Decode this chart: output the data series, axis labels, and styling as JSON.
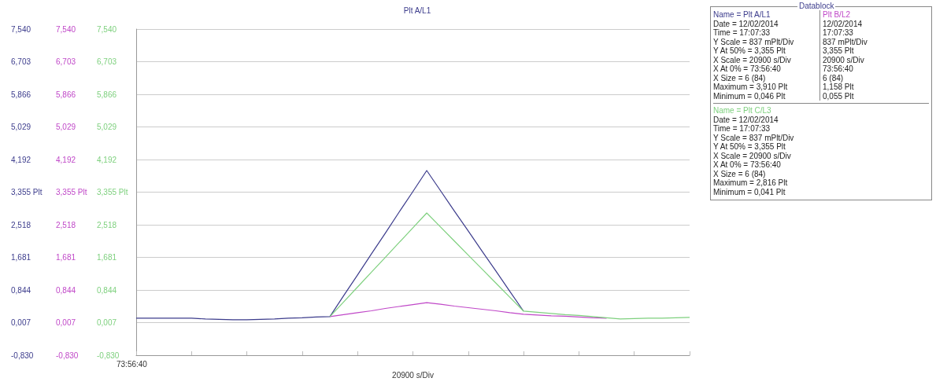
{
  "chart_data": [
    {
      "type": "line",
      "title": "Plt A/L1",
      "xlabel": "20900 s/Div",
      "annotations": [
        "73:56:40"
      ],
      "categories": [
        null,
        null,
        null,
        null,
        null,
        null,
        null,
        null,
        null,
        null,
        null,
        null,
        null,
        null,
        null,
        null,
        null,
        null,
        null,
        null,
        null,
        null,
        null,
        null,
        null,
        null,
        null,
        null,
        null,
        null,
        null,
        null,
        null,
        null,
        null,
        null,
        null,
        null,
        null,
        null,
        null
      ],
      "series": [
        {
          "color": "#3c3c8c",
          "values": [
            0.12,
            0.12,
            0.12,
            0.12,
            0.12,
            0.1,
            0.09,
            0.08,
            0.08,
            0.09,
            0.1,
            0.12,
            0.13,
            0.15,
            0.16,
            0.7,
            1.23,
            1.77,
            2.3,
            2.84,
            3.37,
            3.91,
            3.39,
            2.87,
            2.36,
            1.84,
            1.33,
            0.81,
            0.3,
            null,
            null,
            null,
            null,
            null,
            null,
            null,
            null,
            null,
            null,
            null,
            null
          ]
        },
        {
          "color": "#c048c8",
          "axis": "y2",
          "values": [
            null,
            null,
            null,
            null,
            null,
            null,
            null,
            null,
            null,
            null,
            null,
            null,
            null,
            null,
            0.16,
            0.21,
            0.26,
            0.31,
            0.37,
            0.42,
            0.47,
            0.52,
            0.48,
            0.43,
            0.39,
            0.35,
            0.31,
            0.26,
            0.22,
            0.2,
            0.18,
            0.17,
            0.15,
            0.13,
            0.12,
            null,
            null,
            null,
            null,
            null,
            null
          ]
        },
        {
          "color": "#7ed07e",
          "axis": "y3",
          "values": [
            null,
            null,
            null,
            null,
            null,
            null,
            null,
            null,
            null,
            null,
            null,
            null,
            null,
            null,
            0.16,
            0.54,
            0.92,
            1.3,
            1.68,
            2.06,
            2.44,
            2.82,
            2.46,
            2.1,
            1.74,
            1.38,
            1.02,
            0.66,
            0.3,
            0.27,
            0.24,
            0.21,
            0.19,
            0.16,
            0.13,
            0.1,
            0.11,
            0.12,
            0.12,
            0.13,
            0.14
          ]
        }
      ],
      "ylim": [
        -0.83,
        7.54
      ],
      "yticks": [
        {
          "value": -0.83,
          "label": "-0,830"
        },
        {
          "value": 0.007,
          "label": "0,007"
        },
        {
          "value": 0.844,
          "label": "0,844"
        },
        {
          "value": 1.681,
          "label": "1,681"
        },
        {
          "value": 2.518,
          "label": "2,518"
        },
        {
          "value": 3.355,
          "label": "3,355 Plt"
        },
        {
          "value": 4.192,
          "label": "4,192"
        },
        {
          "value": 5.029,
          "label": "5,029"
        },
        {
          "value": 5.866,
          "label": "5,866"
        },
        {
          "value": 6.703,
          "label": "6,703"
        },
        {
          "value": 7.54,
          "label": "7,540"
        }
      ],
      "y2lim": [
        -0.83,
        7.54
      ],
      "y2ticks": [
        {
          "value": -0.83,
          "label": "-0,830"
        },
        {
          "value": 0.007,
          "label": "0,007"
        },
        {
          "value": 0.844,
          "label": "0,844"
        },
        {
          "value": 1.681,
          "label": "1,681"
        },
        {
          "value": 2.518,
          "label": "2,518"
        },
        {
          "value": 3.355,
          "label": "3,355 Plt"
        },
        {
          "value": 4.192,
          "label": "4,192"
        },
        {
          "value": 5.029,
          "label": "5,029"
        },
        {
          "value": 5.866,
          "label": "5,866"
        },
        {
          "value": 6.703,
          "label": "6,703"
        },
        {
          "value": 7.54,
          "label": "7,540"
        }
      ],
      "y3lim": [
        -0.83,
        7.54
      ],
      "y3ticks": [
        {
          "value": -0.83,
          "label": "-0,830"
        },
        {
          "value": 0.007,
          "label": "0,007"
        },
        {
          "value": 0.844,
          "label": "0,844"
        },
        {
          "value": 1.681,
          "label": "1,681"
        },
        {
          "value": 2.518,
          "label": "2,518"
        },
        {
          "value": 3.355,
          "label": "3,355 Plt"
        },
        {
          "value": 4.192,
          "label": "4,192"
        },
        {
          "value": 5.029,
          "label": "5,029"
        },
        {
          "value": 5.866,
          "label": "5,866"
        },
        {
          "value": 6.703,
          "label": "6,703"
        },
        {
          "value": 7.54,
          "label": "7,540"
        }
      ],
      "grid": "y",
      "marker": "none",
      "line_style": "solid"
    },
    {
      "type": "other",
      "title": "Datablock",
      "annotations": [
        "Name = Plt A/L1",
        "Date = 12/02/2014",
        "Time = 17:07:33",
        "Y Scale = 837 mPlt/Div",
        "Y At 50% = 3,355 Plt",
        "X Scale = 20900 s/Div",
        "X At 0% = 73:56:40",
        "X Size = 6 (84)",
        "Maximum = 3,910 Plt",
        "Minimum = 0,046 Plt",
        "Plt B/L2",
        "12/02/2014",
        "17:07:33",
        "837 mPlt/Div",
        "3,355 Plt",
        "20900 s/Div",
        "73:56:40",
        "6 (84)",
        "1,158 Plt",
        "0,055 Plt",
        "Name = Plt C/L3",
        "Date = 12/02/2014",
        "Time = 17:07:33",
        "Y Scale = 837 mPlt/Div",
        "Y At 50% = 3,355 Plt",
        "X Scale = 20900 s/Div",
        "X At 0% = 73:56:40",
        "X Size = 6 (84)",
        "Maximum = 2,816 Plt",
        "Minimum = 0,041 Plt"
      ]
    }
  ]
}
